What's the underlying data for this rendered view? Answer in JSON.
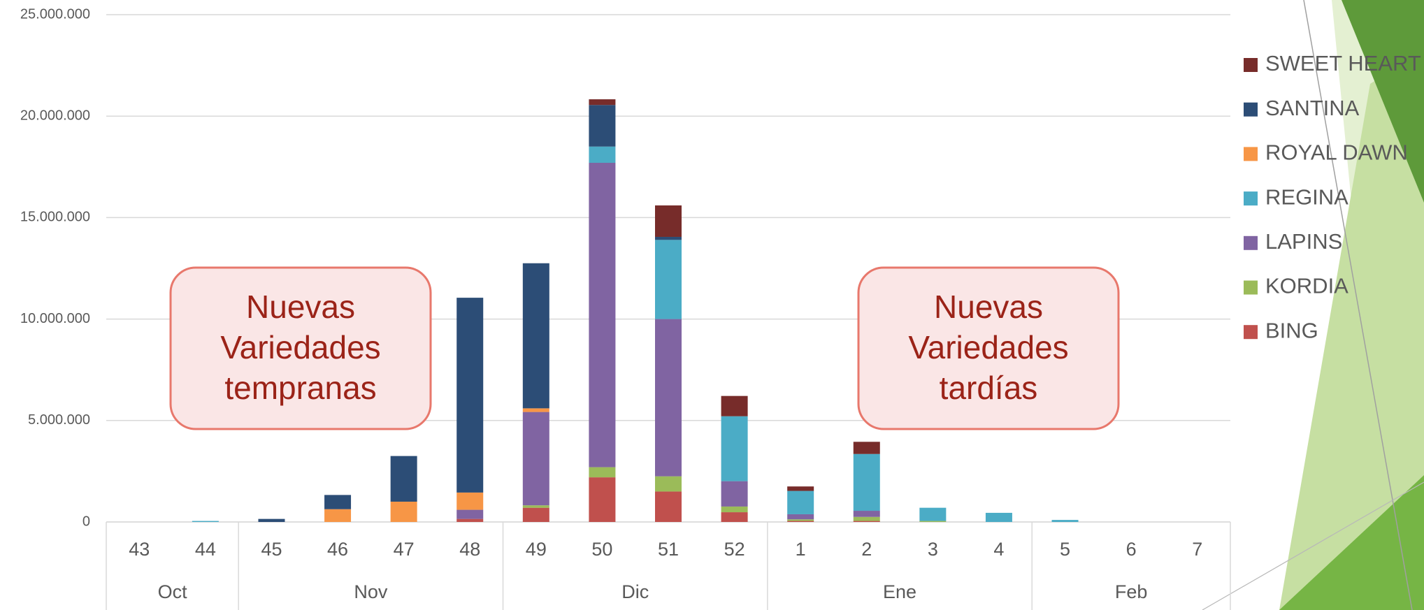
{
  "chart_data": {
    "type": "stacked_bar",
    "categories": [
      "43",
      "44",
      "45",
      "46",
      "47",
      "48",
      "49",
      "50",
      "51",
      "52",
      "1",
      "2",
      "3",
      "4",
      "5",
      "6",
      "7"
    ],
    "x_groups": [
      {
        "label": "Oct",
        "span": 2
      },
      {
        "label": "Nov",
        "span": 4
      },
      {
        "label": "Dic",
        "span": 4
      },
      {
        "label": "Ene",
        "span": 4
      },
      {
        "label": "Feb",
        "span": 3
      }
    ],
    "series": [
      {
        "name": "BING",
        "color": "#c0504d",
        "values": [
          0,
          0,
          0,
          0,
          0,
          0.15,
          0.7,
          2.2,
          1.5,
          0.48,
          0.05,
          0.05,
          0,
          0,
          0,
          0,
          0
        ]
      },
      {
        "name": "KORDIA",
        "color": "#9bbb59",
        "values": [
          0,
          0,
          0,
          0,
          0,
          0,
          0.12,
          0.5,
          0.75,
          0.28,
          0.08,
          0.2,
          0.05,
          0,
          0,
          0,
          0
        ]
      },
      {
        "name": "LAPINS",
        "color": "#8064a2",
        "values": [
          0,
          0,
          0,
          0,
          0,
          0.45,
          4.6,
          15.0,
          7.75,
          1.25,
          0.25,
          0.3,
          0,
          0,
          0,
          0,
          0
        ]
      },
      {
        "name": "REGINA",
        "color": "#4bacc6",
        "values": [
          0,
          0.05,
          0,
          0,
          0,
          0,
          0,
          0.8,
          3.9,
          3.2,
          1.15,
          2.8,
          0.65,
          0.45,
          0.1,
          0,
          0
        ]
      },
      {
        "name": "ROYAL DAWN",
        "color": "#f79646",
        "values": [
          0,
          0,
          0,
          0.63,
          1.0,
          0.85,
          0.18,
          0,
          0,
          0,
          0,
          0,
          0,
          0,
          0,
          0,
          0
        ]
      },
      {
        "name": "SANTINA",
        "color": "#2c4d76",
        "values": [
          0,
          0,
          0.15,
          0.7,
          2.25,
          9.6,
          7.15,
          2.05,
          0.15,
          0,
          0,
          0,
          0,
          0,
          0,
          0,
          0
        ]
      },
      {
        "name": "SWEET HEART",
        "color": "#772c2a",
        "values": [
          0,
          0,
          0,
          0,
          0,
          0,
          0,
          0.28,
          1.55,
          1.0,
          0.22,
          0.6,
          0,
          0,
          0,
          0,
          0
        ]
      }
    ],
    "ylim": [
      0,
      25
    ],
    "yticks": [
      {
        "value": 0,
        "label": "0"
      },
      {
        "value": 5,
        "label": "5.000.000"
      },
      {
        "value": 10,
        "label": "10.000.000"
      },
      {
        "value": 15,
        "label": "15.000.000"
      },
      {
        "value": 20,
        "label": "20.000.000"
      },
      {
        "value": 25,
        "label": "25.000.000"
      }
    ],
    "grid": true,
    "legend": "right",
    "annotations": [
      {
        "lines": [
          "Nuevas",
          "Variedades",
          "tempranas"
        ]
      },
      {
        "lines": [
          "Nuevas",
          "Variedades",
          "tardías"
        ]
      }
    ]
  }
}
